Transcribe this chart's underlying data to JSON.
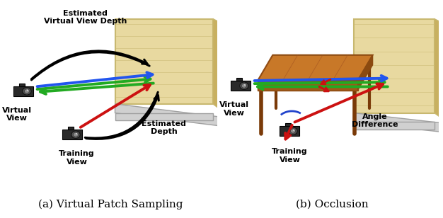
{
  "fig_width": 6.26,
  "fig_height": 3.08,
  "dpi": 100,
  "bg_color": "#ffffff",
  "caption_a": "(a) Virtual Patch Sampling",
  "caption_b": "(b) Occlusion",
  "caption_fontsize": 11,
  "caption_font": "serif",
  "label_a_title": "Estimated\nVirtual View Depth",
  "label_a_estdepth": "Estimated\nDepth",
  "label_a_virtual": "Virtual\nView",
  "label_a_training": "Training\nView",
  "label_b_virtual": "Virtual\nView",
  "label_b_training": "Training\nView",
  "label_b_angle": "Angle\nDifference",
  "wall_color": "#e8d9a0",
  "wall_edge": "#c8b870",
  "wall_side_color": "#c8b060",
  "wall_base_color": "#d0d0d0",
  "wall_base_edge": "#a0a0a0",
  "floor_color": "#d8d8d8",
  "table_top_color": "#c87828",
  "table_front_color": "#a05818",
  "table_side_color": "#8b4a10",
  "table_leg_color": "#7a3a08",
  "arrow_green": "#22aa22",
  "arrow_blue": "#2255ee",
  "arrow_red": "#cc1111",
  "arrow_black": "#000000",
  "arc_color": "#2244cc",
  "label_fontsize": 8,
  "label_fontweight": "bold"
}
